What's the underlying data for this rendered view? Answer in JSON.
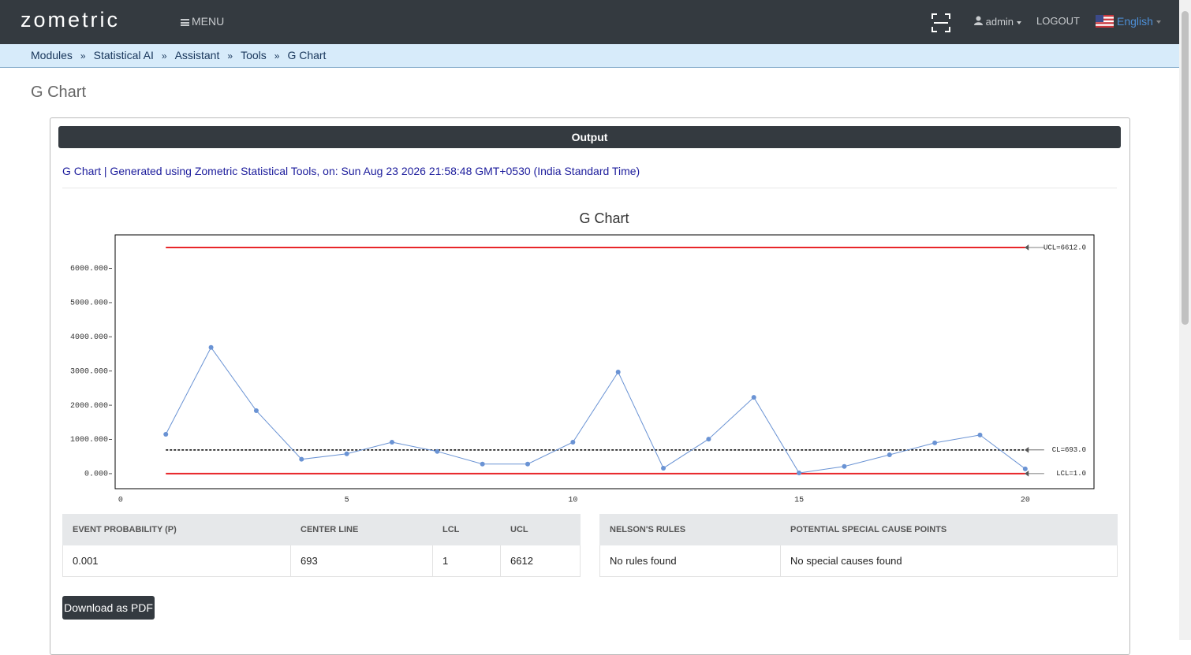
{
  "header": {
    "logo": "zometric",
    "menu": "MENU",
    "user": "admin",
    "logout": "LOGOUT",
    "language": "English"
  },
  "breadcrumb": {
    "items": [
      "Modules",
      "Statistical AI",
      "Assistant",
      "Tools",
      "G Chart"
    ],
    "separator": "»"
  },
  "page_title": "G Chart",
  "panel": {
    "heading": "Output",
    "caption": "G Chart | Generated using Zometric Statistical Tools, on: Sun Aug 23 2026 21:58:48 GMT+0530 (India Standard Time)"
  },
  "chart_data": {
    "type": "line",
    "title": "G Chart",
    "x": [
      1,
      2,
      3,
      4,
      5,
      6,
      7,
      8,
      9,
      10,
      11,
      12,
      13,
      14,
      15,
      16,
      17,
      18,
      19,
      20
    ],
    "series": [
      {
        "color": "#6a93d4",
        "values": [
          1150,
          3690,
          1840,
          420,
          580,
          920,
          650,
          280,
          280,
          920,
          2970,
          160,
          1010,
          2230,
          20,
          210,
          550,
          900,
          1130,
          140
        ]
      }
    ],
    "control_lines": [
      {
        "value": 6612,
        "label": "UCL=6612.0",
        "color": "#e8262a",
        "dashed": false
      },
      {
        "value": 693,
        "label": "CL=693.0",
        "color": "#000000",
        "dashed": true
      },
      {
        "value": 1,
        "label": "LCL=1.0",
        "color": "#e8262a",
        "dashed": false
      }
    ],
    "xlim": [
      -0.12,
      21.52
    ],
    "ylim": [
      -440,
      6980
    ],
    "xticks": [
      0,
      5,
      10,
      15,
      20
    ],
    "yticks": [
      {
        "value": 0,
        "label": "0.000"
      },
      {
        "value": 1000,
        "label": "1000.000"
      },
      {
        "value": 2000,
        "label": "2000.000"
      },
      {
        "value": 3000,
        "label": "3000.000"
      },
      {
        "value": 4000,
        "label": "4000.000"
      },
      {
        "value": 5000,
        "label": "5000.000"
      },
      {
        "value": 6000,
        "label": "6000.000"
      }
    ],
    "grid": false
  },
  "summary_table": {
    "headers": [
      "EVENT PROBABILITY (P)",
      "CENTER LINE",
      "LCL",
      "UCL"
    ],
    "rows": [
      [
        0.001,
        693,
        1,
        6612
      ]
    ]
  },
  "rules_table": {
    "headers": [
      "NELSON'S RULES",
      "POTENTIAL SPECIAL CAUSE POINTS"
    ],
    "rows": [
      [
        "No rules found",
        "No special causes found"
      ]
    ]
  },
  "download_button": "Download as PDF"
}
